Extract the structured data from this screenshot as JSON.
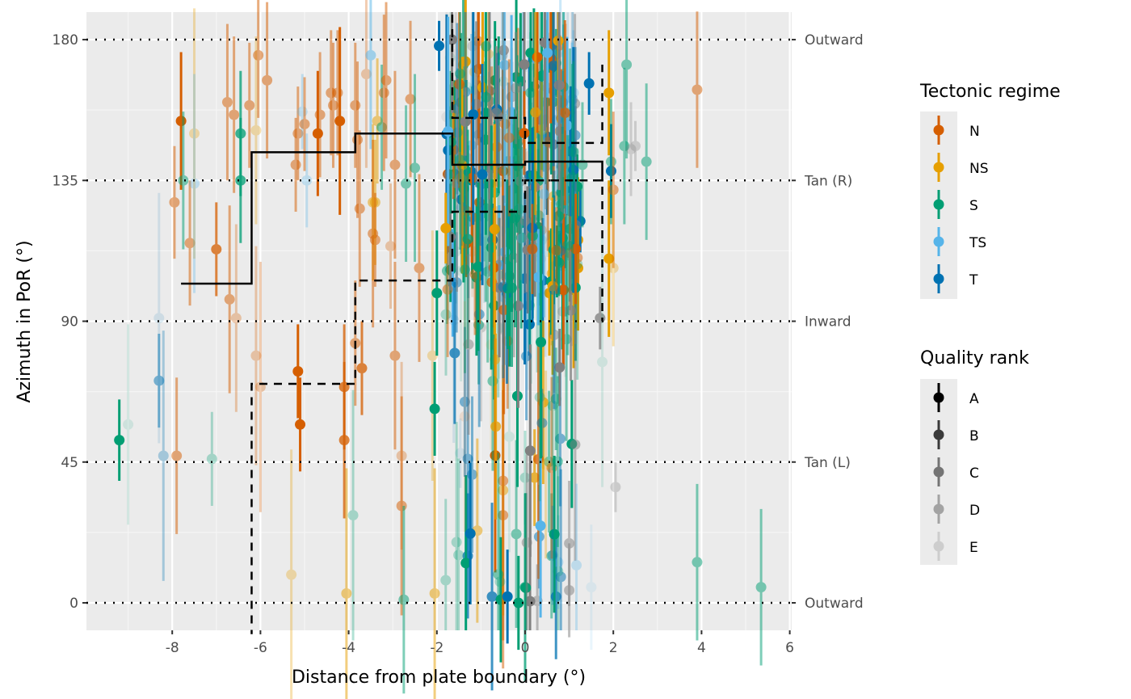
{
  "chart_data": {
    "type": "scatter",
    "title": "",
    "xlabel": "Distance from plate boundary (°)",
    "ylabel": "Azimuth in PoR (°)",
    "xlim": [
      -10,
      6.1
    ],
    "ylim": [
      -9,
      189
    ],
    "x_ticks": [
      -8,
      -6,
      -4,
      -2,
      0,
      2,
      4,
      6
    ],
    "x_tick_labels": [
      "-8",
      "-6",
      "-4",
      "-2",
      "0",
      "2",
      "4",
      "6"
    ],
    "y_ticks": [
      0,
      45,
      90,
      135,
      180
    ],
    "y_tick_labels": [
      "0",
      "45",
      "90",
      "135",
      "180"
    ],
    "secondary_y_labels": [
      {
        "value": 180,
        "label": "Outward"
      },
      {
        "value": 135,
        "label": "Tan (R)"
      },
      {
        "value": 90,
        "label": "Inward"
      },
      {
        "value": 45,
        "label": "Tan (L)"
      },
      {
        "value": 0,
        "label": "Outward"
      }
    ],
    "grid": true,
    "reference_lines": [
      0,
      45,
      90,
      135,
      180
    ],
    "legends": [
      {
        "title": "Tectonic regime",
        "placement": "right",
        "entries": [
          {
            "label": "N",
            "color": "#D55E00"
          },
          {
            "label": "NS",
            "color": "#E69F00"
          },
          {
            "label": "S",
            "color": "#009E73"
          },
          {
            "label": "TS",
            "color": "#56B4E9"
          },
          {
            "label": "T",
            "color": "#0072B2"
          }
        ]
      },
      {
        "title": "Quality rank",
        "placement": "right",
        "entries": [
          {
            "label": "A",
            "alpha": 1.0
          },
          {
            "label": "B",
            "alpha": 0.75
          },
          {
            "label": "C",
            "alpha": 0.5
          },
          {
            "label": "D",
            "alpha": 0.3
          },
          {
            "label": "E",
            "alpha": 0.12
          }
        ]
      }
    ],
    "step_lines": {
      "median": {
        "style": "solid",
        "x": [
          -7.8,
          -6.2,
          -3.85,
          -1.65,
          0,
          1.75
        ],
        "y": [
          102,
          144,
          150,
          140,
          141,
          135
        ]
      },
      "upper_quartile": {
        "style": "dashed",
        "x": [
          -1.65,
          -1.65,
          0,
          1.75
        ],
        "y": [
          188,
          155,
          147,
          172
        ]
      },
      "lower_quartile": {
        "style": "dashed",
        "x": [
          -6.2,
          -6.2,
          -3.85,
          -1.65,
          0,
          1.75
        ],
        "y": [
          -10,
          70,
          103,
          125,
          135,
          90
        ]
      }
    },
    "points": [
      {
        "x": -9.2,
        "y": 52,
        "sd": 13,
        "regime": "S",
        "quality": "A"
      },
      {
        "x": -9.0,
        "y": 57,
        "sd": 32,
        "regime": "S",
        "quality": "E"
      },
      {
        "x": -8.3,
        "y": 71,
        "sd": 15,
        "regime": "T",
        "quality": "C"
      },
      {
        "x": -8.3,
        "y": 91,
        "sd": 40,
        "regime": "T",
        "quality": "E"
      },
      {
        "x": -8.2,
        "y": 47,
        "sd": 40,
        "regime": "T",
        "quality": "D"
      },
      {
        "x": -7.9,
        "y": 47,
        "sd": 25,
        "regime": "N",
        "quality": "C"
      },
      {
        "x": -7.95,
        "y": 128,
        "sd": 18,
        "regime": "N",
        "quality": "C"
      },
      {
        "x": -7.8,
        "y": 154,
        "sd": 22,
        "regime": "N",
        "quality": "A"
      },
      {
        "x": -7.75,
        "y": 135,
        "sd": 22,
        "regime": "S",
        "quality": "C"
      },
      {
        "x": -7.6,
        "y": 115,
        "sd": 20,
        "regime": "N",
        "quality": "C"
      },
      {
        "x": -7.5,
        "y": 150,
        "sd": 40,
        "regime": "NS",
        "quality": "D"
      },
      {
        "x": -7.5,
        "y": 134,
        "sd": 35,
        "regime": "TS",
        "quality": "D"
      },
      {
        "x": -7.1,
        "y": 46,
        "sd": 15,
        "regime": "S",
        "quality": "D"
      },
      {
        "x": -7.0,
        "y": 113,
        "sd": 15,
        "regime": "N",
        "quality": "B"
      },
      {
        "x": -6.75,
        "y": 160,
        "sd": 25,
        "regime": "N",
        "quality": "C"
      },
      {
        "x": -6.7,
        "y": 97,
        "sd": 30,
        "regime": "N",
        "quality": "C"
      },
      {
        "x": -6.6,
        "y": 156,
        "sd": 25,
        "regime": "N",
        "quality": "C"
      },
      {
        "x": -6.55,
        "y": 91,
        "sd": 30,
        "regime": "N",
        "quality": "D"
      },
      {
        "x": -6.45,
        "y": 150,
        "sd": 20,
        "regime": "S",
        "quality": "B"
      },
      {
        "x": -6.45,
        "y": 135,
        "sd": 20,
        "regime": "S",
        "quality": "B"
      },
      {
        "x": -6.25,
        "y": 159,
        "sd": 20,
        "regime": "N",
        "quality": "C"
      },
      {
        "x": -6.1,
        "y": 79,
        "sd": 35,
        "regime": "N",
        "quality": "D"
      },
      {
        "x": -6.1,
        "y": 151,
        "sd": 30,
        "regime": "NS",
        "quality": "D"
      },
      {
        "x": -6.0,
        "y": 69,
        "sd": 40,
        "regime": "N",
        "quality": "D"
      },
      {
        "x": -6.05,
        "y": 175,
        "sd": 20,
        "regime": "N",
        "quality": "C"
      },
      {
        "x": -5.85,
        "y": 167,
        "sd": 25,
        "regime": "N",
        "quality": "C"
      },
      {
        "x": -5.3,
        "y": 9,
        "sd": 40,
        "regime": "NS",
        "quality": "D"
      },
      {
        "x": -5.2,
        "y": 140,
        "sd": 15,
        "regime": "N",
        "quality": "C"
      },
      {
        "x": -5.15,
        "y": 150,
        "sd": 15,
        "regime": "N",
        "quality": "C"
      },
      {
        "x": -5.15,
        "y": 74,
        "sd": 15,
        "regime": "N",
        "quality": "A"
      },
      {
        "x": -5.1,
        "y": 57,
        "sd": 15,
        "regime": "N",
        "quality": "A"
      },
      {
        "x": -5.05,
        "y": 157,
        "sd": 12,
        "regime": "TS",
        "quality": "D"
      },
      {
        "x": -5.0,
        "y": 153,
        "sd": 15,
        "regime": "N",
        "quality": "C"
      },
      {
        "x": -4.95,
        "y": 135,
        "sd": 15,
        "regime": "TS",
        "quality": "D"
      },
      {
        "x": -4.7,
        "y": 150,
        "sd": 20,
        "regime": "N",
        "quality": "A"
      },
      {
        "x": -4.65,
        "y": 156,
        "sd": 20,
        "regime": "N",
        "quality": "C"
      },
      {
        "x": -4.4,
        "y": 163,
        "sd": 20,
        "regime": "N",
        "quality": "C"
      },
      {
        "x": -4.35,
        "y": 159,
        "sd": 20,
        "regime": "N",
        "quality": "C"
      },
      {
        "x": -4.25,
        "y": 163,
        "sd": 20,
        "regime": "N",
        "quality": "C"
      },
      {
        "x": -4.2,
        "y": 154,
        "sd": 30,
        "regime": "N",
        "quality": "A"
      },
      {
        "x": -4.1,
        "y": 69,
        "sd": 20,
        "regime": "N",
        "quality": "B"
      },
      {
        "x": -4.1,
        "y": 52,
        "sd": 25,
        "regime": "N",
        "quality": "B"
      },
      {
        "x": -4.05,
        "y": 3,
        "sd": 40,
        "regime": "NS",
        "quality": "C"
      },
      {
        "x": -3.9,
        "y": 28,
        "sd": 40,
        "regime": "S",
        "quality": "D"
      },
      {
        "x": -3.85,
        "y": 83,
        "sd": 20,
        "regime": "N",
        "quality": "C"
      },
      {
        "x": -3.85,
        "y": 159,
        "sd": 20,
        "regime": "N",
        "quality": "C"
      },
      {
        "x": -3.8,
        "y": 148,
        "sd": 25,
        "regime": "N",
        "quality": "C"
      },
      {
        "x": -3.75,
        "y": 126,
        "sd": 25,
        "regime": "N",
        "quality": "C"
      },
      {
        "x": -3.7,
        "y": 75,
        "sd": 15,
        "regime": "N",
        "quality": "B"
      },
      {
        "x": -3.6,
        "y": 169,
        "sd": 30,
        "regime": "N",
        "quality": "D"
      },
      {
        "x": -3.5,
        "y": 175,
        "sd": 30,
        "regime": "TS",
        "quality": "C"
      },
      {
        "x": -3.45,
        "y": 128,
        "sd": 25,
        "regime": "NS",
        "quality": "C"
      },
      {
        "x": -3.45,
        "y": 118,
        "sd": 30,
        "regime": "N",
        "quality": "C"
      },
      {
        "x": -3.4,
        "y": 128,
        "sd": 20,
        "regime": "NS",
        "quality": "C"
      },
      {
        "x": -3.4,
        "y": 116,
        "sd": 15,
        "regime": "N",
        "quality": "C"
      },
      {
        "x": -3.35,
        "y": 154,
        "sd": 20,
        "regime": "NS",
        "quality": "C"
      },
      {
        "x": -3.25,
        "y": 152,
        "sd": 20,
        "regime": "S",
        "quality": "C"
      },
      {
        "x": -3.2,
        "y": 163,
        "sd": 25,
        "regime": "N",
        "quality": "C"
      },
      {
        "x": -3.15,
        "y": 167,
        "sd": 25,
        "regime": "N",
        "quality": "C"
      },
      {
        "x": -3.05,
        "y": 114,
        "sd": 20,
        "regime": "N",
        "quality": "D"
      },
      {
        "x": -2.95,
        "y": 79,
        "sd": 30,
        "regime": "N",
        "quality": "C"
      },
      {
        "x": -2.95,
        "y": 140,
        "sd": 30,
        "regime": "N",
        "quality": "C"
      },
      {
        "x": -2.8,
        "y": 47,
        "sd": 30,
        "regime": "N",
        "quality": "D"
      },
      {
        "x": -2.8,
        "y": 31,
        "sd": 35,
        "regime": "N",
        "quality": "C"
      },
      {
        "x": -2.75,
        "y": 1,
        "sd": 30,
        "regime": "S",
        "quality": "C"
      },
      {
        "x": -2.7,
        "y": 134,
        "sd": 25,
        "regime": "S",
        "quality": "C"
      },
      {
        "x": -2.6,
        "y": 161,
        "sd": 25,
        "regime": "N",
        "quality": "C"
      },
      {
        "x": -2.5,
        "y": 139,
        "sd": 30,
        "regime": "S",
        "quality": "C"
      },
      {
        "x": -2.4,
        "y": 107,
        "sd": 30,
        "regime": "N",
        "quality": "C"
      },
      {
        "x": -2.1,
        "y": 79,
        "sd": 40,
        "regime": "NS",
        "quality": "D"
      },
      {
        "x": -2.05,
        "y": 3,
        "sd": 40,
        "regime": "NS",
        "quality": "C"
      },
      {
        "x": -2.05,
        "y": 62,
        "sd": 15,
        "regime": "S",
        "quality": "A"
      },
      {
        "x": -2.0,
        "y": 99,
        "sd": 20,
        "regime": "S",
        "quality": "A"
      },
      {
        "x": -1.95,
        "y": 178,
        "sd": 8,
        "regime": "T",
        "quality": "A"
      },
      {
        "x": -1.75,
        "y": 137,
        "sd": 25,
        "regime": "N",
        "quality": "A"
      },
      {
        "x": -1.6,
        "y": 137,
        "sd": 30,
        "regime": "S",
        "quality": "A"
      },
      {
        "x": -1.4,
        "y": 172,
        "sd": 25,
        "regime": "S",
        "quality": "B"
      },
      {
        "x": -1.35,
        "y": 173,
        "sd": 20,
        "regime": "NS",
        "quality": "A"
      },
      {
        "x": -1.3,
        "y": 46,
        "sd": 35,
        "regime": "T",
        "quality": "C"
      },
      {
        "x": -1.3,
        "y": 15,
        "sd": 20,
        "regime": "T",
        "quality": "B"
      },
      {
        "x": -1.2,
        "y": 41,
        "sd": 25,
        "regime": "T",
        "quality": "C"
      },
      {
        "x": -1.2,
        "y": 135,
        "sd": 30,
        "regime": "S",
        "quality": "A"
      },
      {
        "x": -1.1,
        "y": 104,
        "sd": 25,
        "regime": "S",
        "quality": "A"
      },
      {
        "x": -1.0,
        "y": 88,
        "sd": 30,
        "regime": "D",
        "quality": "D"
      },
      {
        "x": -0.9,
        "y": 148,
        "sd": 25,
        "regime": "S",
        "quality": "A"
      },
      {
        "x": -0.8,
        "y": 134,
        "sd": 25,
        "regime": "S",
        "quality": "A"
      },
      {
        "x": -0.75,
        "y": 2,
        "sd": 30,
        "regime": "T",
        "quality": "B"
      },
      {
        "x": -0.7,
        "y": 95,
        "sd": 30,
        "regime": "S",
        "quality": "A"
      },
      {
        "x": -0.6,
        "y": 156,
        "sd": 25,
        "regime": "S",
        "quality": "A"
      },
      {
        "x": -0.55,
        "y": 1,
        "sd": 20,
        "regime": "S",
        "quality": "A"
      },
      {
        "x": -0.5,
        "y": 138,
        "sd": 35,
        "regime": "N",
        "quality": "A"
      },
      {
        "x": -0.5,
        "y": 39,
        "sd": 60,
        "regime": "N",
        "quality": "C"
      },
      {
        "x": -0.5,
        "y": 36,
        "sd": 40,
        "regime": "NS",
        "quality": "C"
      },
      {
        "x": -0.5,
        "y": 28,
        "sd": 40,
        "regime": "N",
        "quality": "C"
      },
      {
        "x": -0.4,
        "y": 2,
        "sd": 15,
        "regime": "T",
        "quality": "A"
      },
      {
        "x": -0.3,
        "y": 123,
        "sd": 30,
        "regime": "S",
        "quality": "A"
      },
      {
        "x": -0.2,
        "y": 168,
        "sd": 25,
        "regime": "S",
        "quality": "A"
      },
      {
        "x": -0.2,
        "y": 22,
        "sd": 30,
        "regime": "S",
        "quality": "C"
      },
      {
        "x": -0.15,
        "y": 0,
        "sd": 15,
        "regime": "S",
        "quality": "A"
      },
      {
        "x": 0.0,
        "y": 40,
        "sd": 15,
        "regime": "S",
        "quality": "D"
      },
      {
        "x": 0.0,
        "y": 5,
        "sd": 30,
        "regime": "S",
        "quality": "B"
      },
      {
        "x": 0.1,
        "y": 89,
        "sd": 10,
        "regime": "T",
        "quality": "A"
      },
      {
        "x": 0.2,
        "y": 165,
        "sd": 25,
        "regime": "S",
        "quality": "A"
      },
      {
        "x": 0.3,
        "y": 120,
        "sd": 25,
        "regime": "S",
        "quality": "A"
      },
      {
        "x": 0.4,
        "y": 103,
        "sd": 20,
        "regime": "T",
        "quality": "A"
      },
      {
        "x": 0.5,
        "y": 149,
        "sd": 25,
        "regime": "T",
        "quality": "A"
      },
      {
        "x": 0.55,
        "y": 99,
        "sd": 20,
        "regime": "NS",
        "quality": "A"
      },
      {
        "x": 0.6,
        "y": 15,
        "sd": 20,
        "regime": "S",
        "quality": "C"
      },
      {
        "x": 0.7,
        "y": 2,
        "sd": 20,
        "regime": "T",
        "quality": "B"
      },
      {
        "x": 0.75,
        "y": 13,
        "sd": 15,
        "regime": "TS",
        "quality": "D"
      },
      {
        "x": 0.8,
        "y": 176,
        "sd": 20,
        "regime": "TS",
        "quality": "D"
      },
      {
        "x": 0.9,
        "y": 132,
        "sd": 25,
        "regime": "T",
        "quality": "A"
      },
      {
        "x": 1.0,
        "y": 19,
        "sd": 20,
        "regime": "D",
        "quality": "C"
      },
      {
        "x": 1.0,
        "y": 4,
        "sd": 15,
        "regime": "D",
        "quality": "C"
      },
      {
        "x": 1.1,
        "y": 163,
        "sd": 20,
        "regime": "TS",
        "quality": "D"
      },
      {
        "x": 1.1,
        "y": 100,
        "sd": 25,
        "regime": "NS",
        "quality": "A"
      },
      {
        "x": 1.2,
        "y": 116,
        "sd": 20,
        "regime": "NS",
        "quality": "A"
      },
      {
        "x": 1.2,
        "y": 107,
        "sd": 20,
        "regime": "NS",
        "quality": "A"
      },
      {
        "x": 1.25,
        "y": 122,
        "sd": 10,
        "regime": "T",
        "quality": "A"
      },
      {
        "x": 1.3,
        "y": 140,
        "sd": 20,
        "regime": "S",
        "quality": "C"
      },
      {
        "x": 1.45,
        "y": 166,
        "sd": 10,
        "regime": "T",
        "quality": "A"
      },
      {
        "x": 1.5,
        "y": 5,
        "sd": 20,
        "regime": "TS",
        "quality": "E"
      },
      {
        "x": 1.7,
        "y": 91,
        "sd": 10,
        "regime": "D",
        "quality": "B"
      },
      {
        "x": 1.75,
        "y": 77,
        "sd": 40,
        "regime": "S",
        "quality": "E"
      },
      {
        "x": 1.9,
        "y": 163,
        "sd": 20,
        "regime": "NS",
        "quality": "A"
      },
      {
        "x": 1.9,
        "y": 110,
        "sd": 25,
        "regime": "NS",
        "quality": "A"
      },
      {
        "x": 1.95,
        "y": 138,
        "sd": 15,
        "regime": "T",
        "quality": "A"
      },
      {
        "x": 1.95,
        "y": 141,
        "sd": 20,
        "regime": "S",
        "quality": "C"
      },
      {
        "x": 2.0,
        "y": 132,
        "sd": 25,
        "regime": "N",
        "quality": "C"
      },
      {
        "x": 2.0,
        "y": 107,
        "sd": 25,
        "regime": "NS",
        "quality": "D"
      },
      {
        "x": 2.05,
        "y": 37,
        "sd": 8,
        "regime": "D",
        "quality": "D"
      },
      {
        "x": 2.25,
        "y": 146,
        "sd": 25,
        "regime": "S",
        "quality": "C"
      },
      {
        "x": 2.3,
        "y": 172,
        "sd": 30,
        "regime": "S",
        "quality": "C"
      },
      {
        "x": 2.4,
        "y": 145,
        "sd": 15,
        "regime": "D",
        "quality": "D"
      },
      {
        "x": 2.5,
        "y": 146,
        "sd": 8,
        "regime": "D",
        "quality": "D"
      },
      {
        "x": 2.75,
        "y": 141,
        "sd": 25,
        "regime": "S",
        "quality": "C"
      },
      {
        "x": 3.9,
        "y": 164,
        "sd": 25,
        "regime": "N",
        "quality": "C"
      },
      {
        "x": 3.9,
        "y": 13,
        "sd": 25,
        "regime": "S",
        "quality": "C"
      },
      {
        "x": 5.35,
        "y": 5,
        "sd": 25,
        "regime": "S",
        "quality": "C"
      }
    ]
  }
}
